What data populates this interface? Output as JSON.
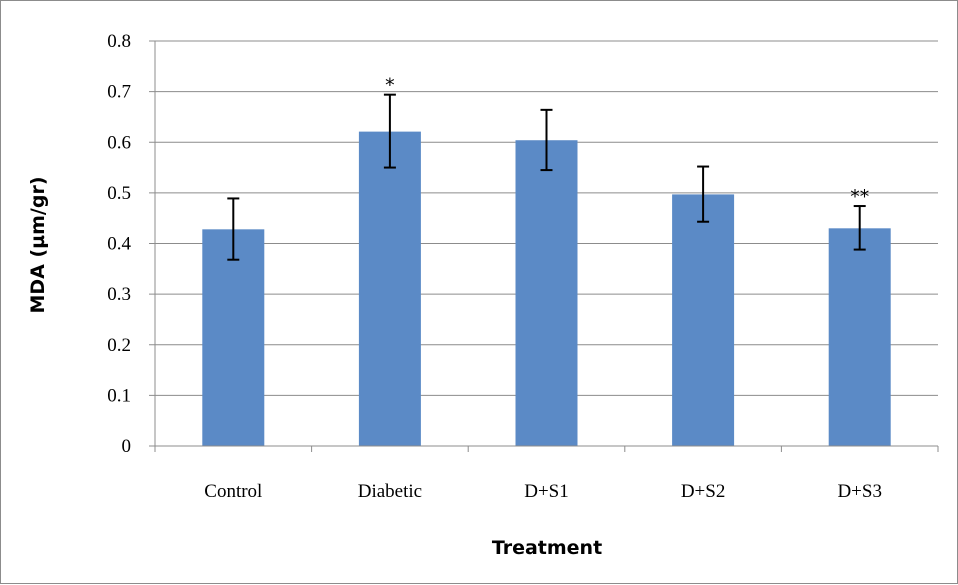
{
  "chart_data": {
    "type": "bar",
    "title": "",
    "xlabel": "Treatment",
    "ylabel": "MDA (µm/gr)",
    "ylim": [
      0,
      0.8
    ],
    "yticks": [
      "0",
      "0.1",
      "0.2",
      "0.3",
      "0.4",
      "0.5",
      "0.6",
      "0.7",
      "0.8"
    ],
    "grid": true,
    "legend": "none",
    "categories": [
      "Control",
      "Diabetic",
      "D+S1",
      "D+S2",
      "D+S3"
    ],
    "values": [
      0.428,
      0.621,
      0.604,
      0.497,
      0.43
    ],
    "error_low": [
      0.368,
      0.55,
      0.545,
      0.443,
      0.388
    ],
    "error_high": [
      0.489,
      0.694,
      0.664,
      0.552,
      0.474
    ],
    "annotations": [
      "",
      "*",
      "",
      "",
      "**"
    ],
    "bar_color": "#5B8AC6",
    "gridline_color": "#8c8c8c",
    "axis_color": "#8c8c8c",
    "error_bar_color": "#000000"
  }
}
